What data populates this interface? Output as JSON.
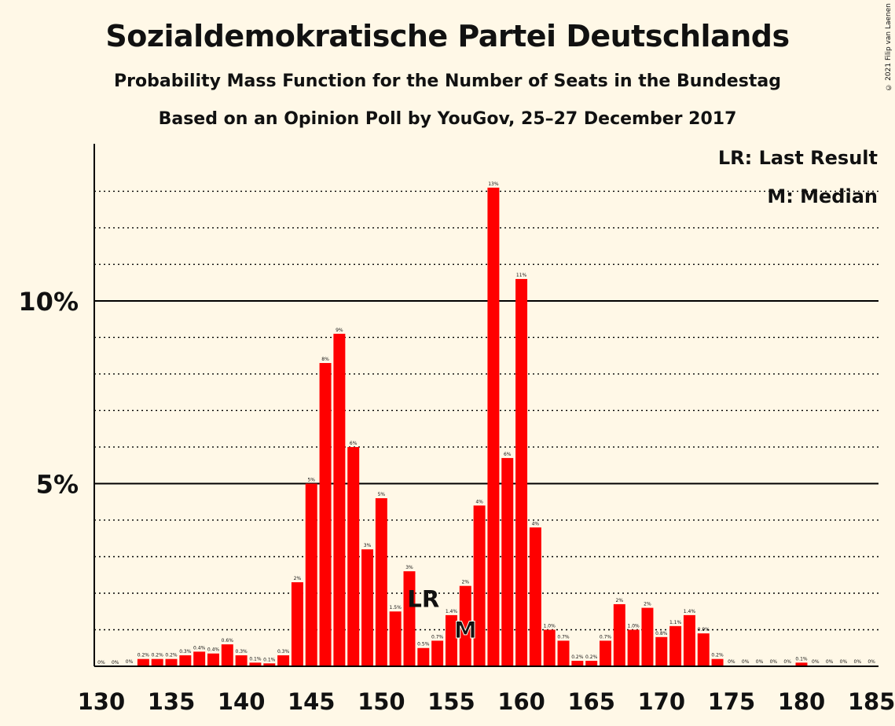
{
  "title": "Sozialdemokratische Partei Deutschlands",
  "subtitle": "Probability Mass Function for the Number of Seats in the Bundestag",
  "subtitle2": "Based on an Opinion Poll by YouGov, 25–27 December 2017",
  "credit": "© 2021 Filip van Laenen",
  "legend": {
    "lr": "LR: Last Result",
    "m": "M: Median"
  },
  "colors": {
    "bar": "#ff0000",
    "background": "#fff8e7",
    "text": "#111111"
  },
  "chart_data": {
    "type": "bar",
    "x": [
      130,
      131,
      132,
      133,
      134,
      135,
      136,
      137,
      138,
      139,
      140,
      141,
      142,
      143,
      144,
      145,
      146,
      147,
      148,
      149,
      150,
      151,
      152,
      153,
      154,
      155,
      156,
      157,
      158,
      159,
      160,
      161,
      162,
      163,
      164,
      165,
      166,
      167,
      168,
      169,
      170,
      171,
      172,
      173,
      174,
      175,
      176,
      177,
      178,
      179,
      180,
      181,
      182,
      183,
      184,
      185
    ],
    "values": [
      0,
      0,
      0.02,
      0.2,
      0.2,
      0.2,
      0.3,
      0.4,
      0.35,
      0.6,
      0.3,
      0.1,
      0.08,
      0.3,
      2.3,
      5.0,
      8.3,
      9.1,
      6.0,
      3.2,
      4.6,
      1.5,
      2.6,
      0.5,
      0.7,
      1.4,
      2.2,
      4.4,
      13.1,
      5.7,
      10.6,
      3.8,
      1.0,
      0.7,
      0.15,
      0.15,
      0.7,
      1.7,
      1.0,
      1.6,
      0.8,
      1.1,
      1.4,
      0.9,
      0.2,
      0.02,
      0.02,
      0.02,
      0.02,
      0.02,
      0.1,
      0.02,
      0.02,
      0.02,
      0.02,
      0.02
    ],
    "labels": [
      "0%",
      "0%",
      "0%",
      "0.2%",
      "0.2%",
      "0.2%",
      "0.3%",
      "0.4%",
      "0.4%",
      "0.6%",
      "0.3%",
      "0.1%",
      "0.1%",
      "0.3%",
      "2%",
      "5%",
      "8%",
      "9%",
      "6%",
      "3%",
      "5%",
      "1.5%",
      "3%",
      "0.5%",
      "0.7%",
      "1.4%",
      "2%",
      "4%",
      "13%",
      "6%",
      "11%",
      "4%",
      "1.0%",
      "0.7%",
      "0.2%",
      "0.2%",
      "0.7%",
      "2%",
      "1.0%",
      "2%",
      "0.8%",
      "1.1%",
      "1.4%",
      "0.9%",
      "0.2%",
      "0%",
      "0%",
      "0%",
      "0%",
      "0%",
      "0.1%",
      "0%",
      "0%",
      "0%",
      "0%",
      "0%"
    ],
    "x_ticks": [
      130,
      135,
      140,
      145,
      150,
      155,
      160,
      165,
      170,
      175,
      180,
      185
    ],
    "x_tick_labels": [
      "130",
      "135",
      "140",
      "145",
      "150",
      "155",
      "160",
      "165",
      "170",
      "175",
      "180",
      "185"
    ],
    "y_ticks": [
      5,
      10
    ],
    "y_tick_labels": [
      "5%",
      "10%"
    ],
    "ylim": [
      0,
      14.3
    ],
    "xlim": [
      129.5,
      185.5
    ],
    "last_result": 153,
    "last_result_label": "LR",
    "median": 156,
    "median_label": "M"
  }
}
